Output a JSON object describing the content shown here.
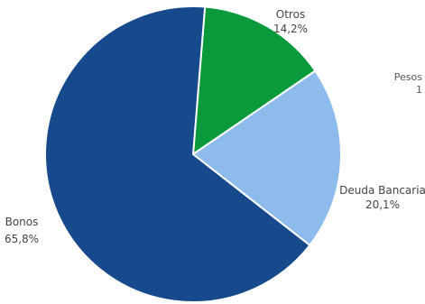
{
  "chart_data": {
    "type": "pie",
    "unit_label": {
      "line1": "Pesos",
      "line2": "1"
    },
    "slices": [
      {
        "name": "Otros",
        "value_label": "14,2%",
        "value": 14.2,
        "color": "#0a9a3c"
      },
      {
        "name": "Deuda Bancaria",
        "value_label": "20,1%",
        "value": 20.1,
        "color": "#8dbbec"
      },
      {
        "name": "Bonos",
        "value_label": "65,8%",
        "value": 65.8,
        "color": "#174a8c"
      }
    ]
  }
}
